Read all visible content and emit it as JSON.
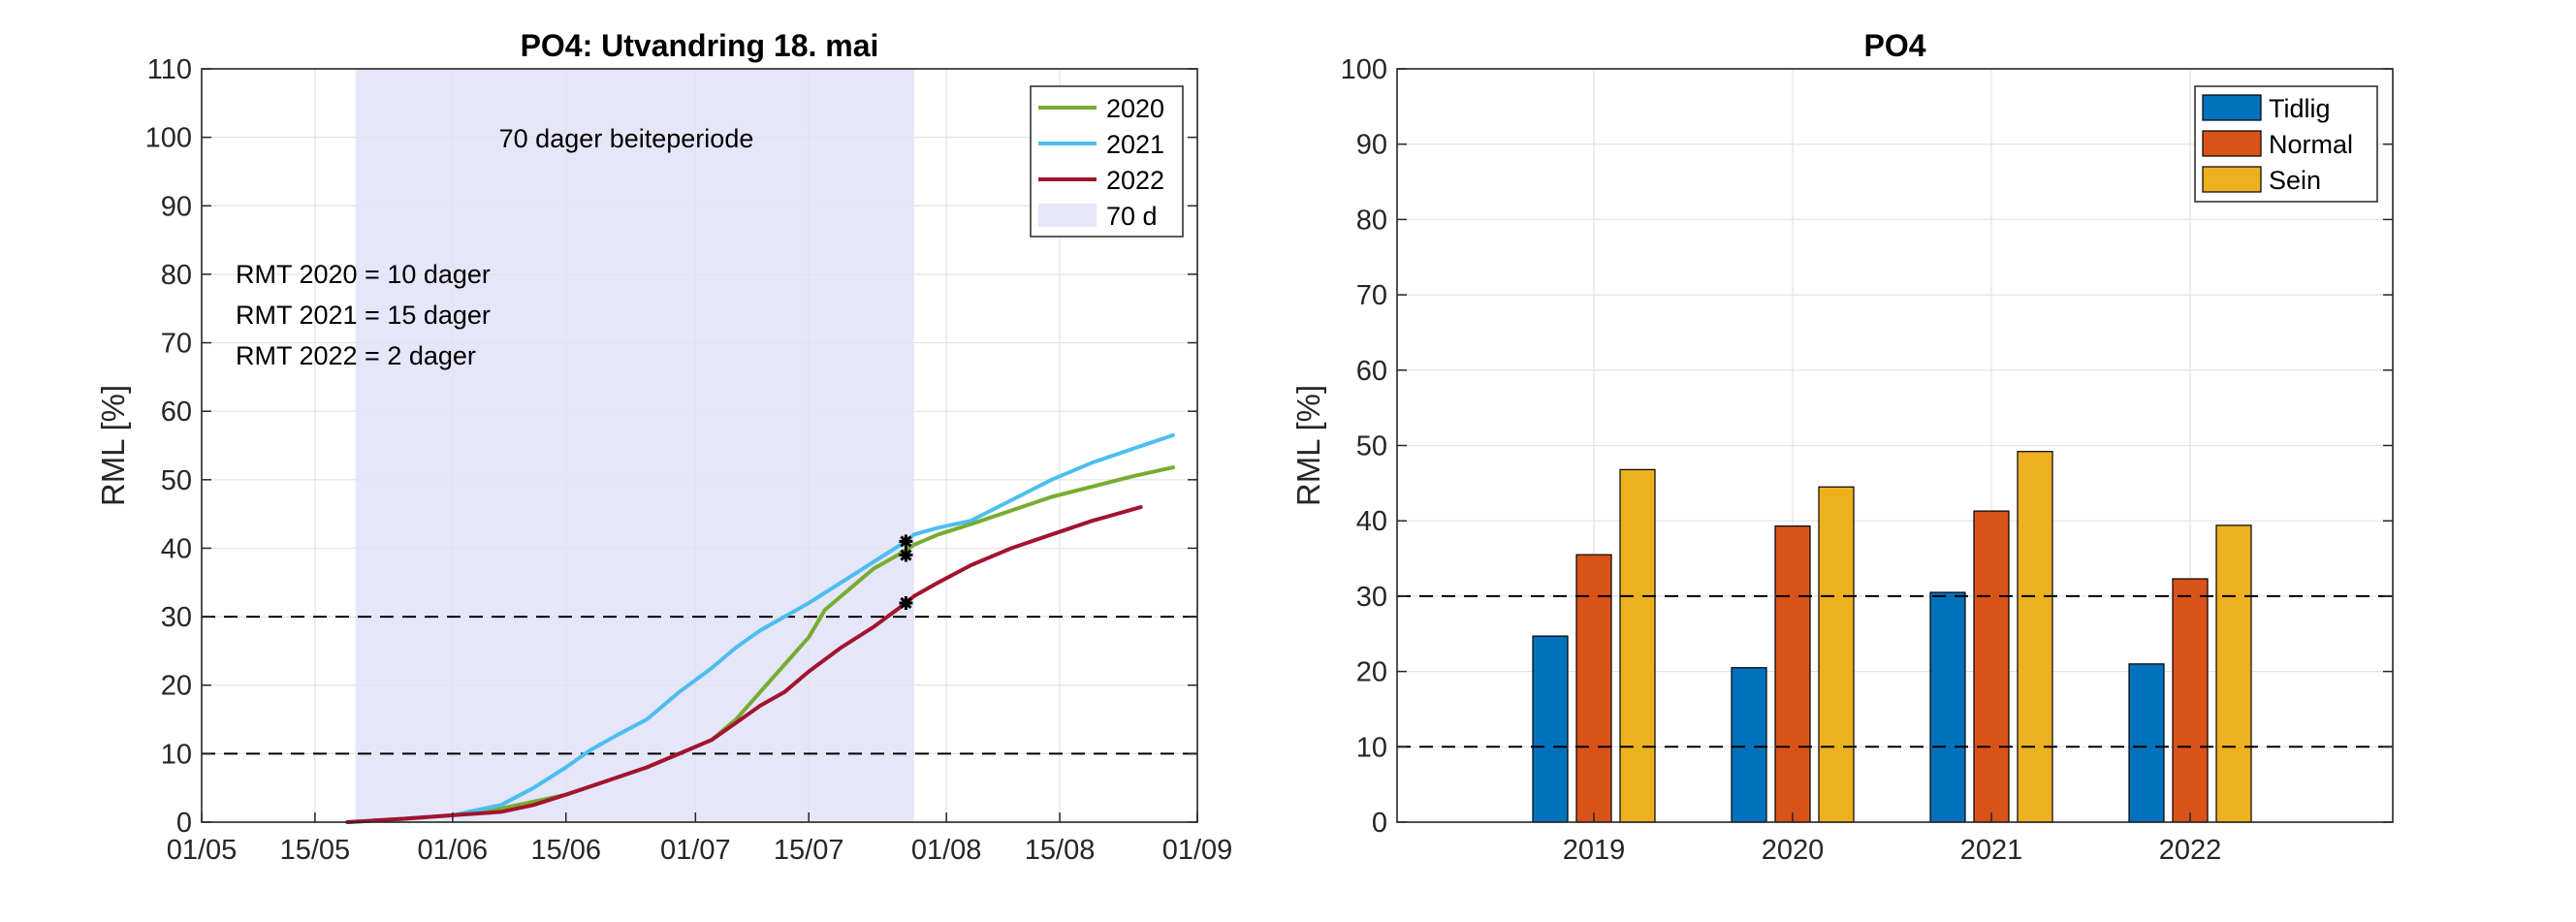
{
  "chart_data": [
    {
      "type": "line",
      "title": "PO4: Utvandring 18. mai",
      "ylabel": "RML [%]",
      "xlabel": "",
      "x_domain_days": [
        0,
        123
      ],
      "ylim": [
        0,
        110
      ],
      "yticks": [
        0,
        10,
        20,
        30,
        40,
        50,
        60,
        70,
        80,
        90,
        100,
        110
      ],
      "xtick_labels": [
        "01/05",
        "15/05",
        "01/06",
        "15/06",
        "01/07",
        "15/07",
        "01/08",
        "15/08",
        "01/09"
      ],
      "xtick_days": [
        0,
        14,
        31,
        45,
        61,
        75,
        92,
        106,
        123
      ],
      "grid": true,
      "hlines": [
        10,
        30
      ],
      "shaded_period": {
        "start_day": 19,
        "end_day": 88,
        "label": "70 d"
      },
      "annotation": "70 dager beiteperiode",
      "rmt_notes": [
        "RMT 2020 = 10 dager",
        "RMT 2021 = 15 dager",
        "RMT 2022 = 2 dager"
      ],
      "legend_position": "top-right",
      "series": [
        {
          "name": "2020",
          "color": "#77AC30",
          "x": [
            18,
            25,
            31,
            37,
            41,
            45,
            50,
            55,
            59,
            61,
            63,
            66,
            69,
            72,
            75,
            77,
            80,
            83,
            86,
            88,
            91,
            95,
            100,
            105,
            110,
            115,
            120
          ],
          "y": [
            0,
            0.5,
            1,
            2,
            3,
            4,
            6,
            8,
            10,
            11,
            12,
            15,
            19,
            23,
            27,
            31,
            34,
            37,
            39,
            40.5,
            42,
            43.5,
            45.5,
            47.5,
            49,
            50.5,
            51.8
          ],
          "marker_day": 87,
          "marker_y": 39
        },
        {
          "name": "2021",
          "color": "#4DBEEE",
          "x": [
            18,
            25,
            31,
            37,
            41,
            45,
            48,
            51,
            55,
            59,
            63,
            66,
            69,
            72,
            75,
            79,
            83,
            87,
            88,
            91,
            95,
            100,
            105,
            110,
            115,
            120
          ],
          "y": [
            0,
            0.5,
            1,
            2.5,
            5,
            8,
            10.5,
            12.5,
            15,
            19,
            22.5,
            25.5,
            28,
            30,
            32,
            35,
            38,
            41,
            42,
            43,
            44,
            47,
            50,
            52.5,
            54.5,
            56.5
          ],
          "marker_day": 87,
          "marker_y": 41
        },
        {
          "name": "2022",
          "color": "#A2142F",
          "x": [
            18,
            25,
            31,
            37,
            41,
            45,
            50,
            55,
            59,
            63,
            66,
            69,
            72,
            75,
            79,
            83,
            87,
            88,
            91,
            95,
            100,
            105,
            110,
            116
          ],
          "y": [
            0,
            0.5,
            1,
            1.5,
            2.5,
            4,
            6,
            8,
            10,
            12,
            14.5,
            17,
            19,
            22,
            25.5,
            28.5,
            32,
            33,
            35,
            37.5,
            40,
            42,
            44,
            46
          ],
          "marker_day": 87,
          "marker_y": 32
        }
      ]
    },
    {
      "type": "bar",
      "title": "PO4",
      "ylabel": "RML [%]",
      "xlabel": "",
      "categories": [
        "2019",
        "2020",
        "2021",
        "2022"
      ],
      "ylim": [
        0,
        100
      ],
      "yticks": [
        0,
        10,
        20,
        30,
        40,
        50,
        60,
        70,
        80,
        90,
        100
      ],
      "grid": true,
      "hlines": [
        10,
        30
      ],
      "legend_position": "top-right",
      "series": [
        {
          "name": "Tidlig",
          "color": "#0072BD",
          "values": [
            24.7,
            20.5,
            30.5,
            21.0
          ]
        },
        {
          "name": "Normal",
          "color": "#D95319",
          "values": [
            35.5,
            39.3,
            41.3,
            32.3
          ]
        },
        {
          "name": "Sein",
          "color": "#EDB120",
          "values": [
            46.8,
            44.5,
            49.2,
            39.4
          ]
        }
      ]
    }
  ]
}
